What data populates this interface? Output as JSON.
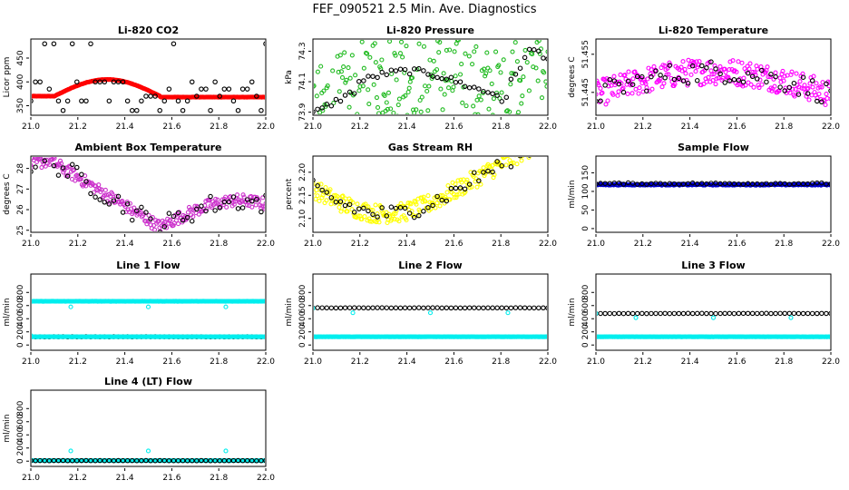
{
  "figure": {
    "title": "FEF_090521  2.5 Min. Ave. Diagnostics"
  },
  "chart_data": [
    {
      "type": "scatter",
      "title": "Li-820 CO2",
      "ylabel": "Licor ppm",
      "xlim": [
        21.0,
        22.0
      ],
      "ylim": [
        330,
        490
      ],
      "xticks": [
        "21.0",
        "21.2",
        "21.4",
        "21.6",
        "21.8",
        "22.0"
      ],
      "yticks": [
        "350",
        "400",
        "450"
      ],
      "series": [
        {
          "color": "#ff0000",
          "style": "dense",
          "gen": {
            "kind": "co2"
          }
        },
        {
          "color": "#000000",
          "style": "sparse",
          "gen": {
            "kind": "co2scatter"
          }
        }
      ]
    },
    {
      "type": "scatter",
      "title": "Li-820 Pressure",
      "ylabel": "kPa",
      "xlim": [
        21.0,
        22.0
      ],
      "ylim": [
        73.88,
        74.38
      ],
      "xticks": [
        "21.0",
        "21.2",
        "21.4",
        "21.6",
        "21.8",
        "22.0"
      ],
      "yticks": [
        "73.9",
        "74.1",
        "74.3"
      ],
      "series": [
        {
          "color": "#22bb22",
          "style": "dense",
          "gen": {
            "kind": "pressure"
          }
        },
        {
          "color": "#000000",
          "style": "sparse",
          "gen": {
            "kind": "pressure",
            "noise": 0.02
          }
        }
      ]
    },
    {
      "type": "scatter",
      "title": "Li-820 Temperature",
      "ylabel": "degrees C",
      "xlim": [
        21.0,
        22.0
      ],
      "ylim": [
        51.439,
        51.459
      ],
      "xticks": [
        "21.0",
        "21.2",
        "21.4",
        "21.6",
        "21.8",
        "22.0"
      ],
      "yticks": [
        "51.445",
        "51.455"
      ],
      "series": [
        {
          "color": "#ff00ff",
          "style": "medium",
          "gen": {
            "kind": "ltemp",
            "noise": 0.0035
          }
        },
        {
          "color": "#000000",
          "style": "sparse",
          "gen": {
            "kind": "ltemp",
            "noise": 0.003
          }
        }
      ]
    },
    {
      "type": "scatter",
      "title": "Ambient Box Temperature",
      "ylabel": "degrees C",
      "xlim": [
        21.0,
        22.0
      ],
      "ylim": [
        24.9,
        28.6
      ],
      "xticks": [
        "21.0",
        "21.2",
        "21.4",
        "21.6",
        "21.8",
        "22.0"
      ],
      "yticks": [
        "25",
        "26",
        "27",
        "28"
      ],
      "series": [
        {
          "color": "#cc33cc",
          "style": "dense",
          "gen": {
            "kind": "ambient"
          }
        },
        {
          "color": "#000000",
          "style": "sparse",
          "gen": {
            "kind": "ambient"
          }
        }
      ]
    },
    {
      "type": "scatter",
      "title": "Gas Stream RH",
      "ylabel": "percent",
      "xlim": [
        21.0,
        22.0
      ],
      "ylim": [
        2.07,
        2.235
      ],
      "xticks": [
        "21.0",
        "21.2",
        "21.4",
        "21.6",
        "21.8",
        "22.0"
      ],
      "yticks": [
        "2.10",
        "2.15",
        "2.20"
      ],
      "series": [
        {
          "color": "#ffff00",
          "style": "medium",
          "gen": {
            "kind": "rh",
            "noise": 0.02
          }
        },
        {
          "color": "#000000",
          "style": "sparse",
          "gen": {
            "kind": "rh",
            "noise": 0.018
          }
        }
      ]
    },
    {
      "type": "scatter",
      "title": "Sample Flow",
      "ylabel": "ml/min",
      "xlim": [
        21.0,
        22.0
      ],
      "ylim": [
        -10,
        195
      ],
      "xticks": [
        "21.0",
        "21.2",
        "21.4",
        "21.6",
        "21.8",
        "22.0"
      ],
      "yticks": [
        "0",
        "50",
        "100",
        "150"
      ],
      "series": [
        {
          "color": "#0000cc",
          "style": "dense",
          "gen": {
            "kind": "flat",
            "level": 118
          }
        },
        {
          "color": "#000000",
          "style": "sparse",
          "gen": {
            "kind": "flat",
            "level": 121
          }
        }
      ]
    },
    {
      "type": "scatter",
      "title": "Line 1 Flow",
      "ylabel": "ml/min",
      "xlim": [
        21.0,
        22.0
      ],
      "ylim": [
        -80,
        1080
      ],
      "xticks": [
        "21.0",
        "21.2",
        "21.4",
        "21.6",
        "21.8",
        "22.0"
      ],
      "yticks": [
        "0",
        "200",
        "400",
        "600",
        "800"
      ],
      "series": [
        {
          "color": "#00eeee",
          "style": "dense",
          "gen": {
            "kind": "flat",
            "level": 665
          }
        },
        {
          "color": "#000000",
          "style": "sparse",
          "gen": {
            "kind": "flat",
            "level": 125
          }
        },
        {
          "color": "#00eeee",
          "style": "dense",
          "gen": {
            "kind": "flat",
            "level": 125
          }
        },
        {
          "color": "#00eeee",
          "style": "points",
          "points": [
            [
              21.0,
              145
            ],
            [
              21.17,
              580
            ],
            [
              21.5,
              580
            ],
            [
              21.83,
              580
            ]
          ]
        }
      ]
    },
    {
      "type": "scatter",
      "title": "Line 2 Flow",
      "ylabel": "ml/min",
      "xlim": [
        21.0,
        22.0
      ],
      "ylim": [
        -80,
        1080
      ],
      "xticks": [
        "21.0",
        "21.2",
        "21.4",
        "21.6",
        "21.8",
        "22.0"
      ],
      "yticks": [
        "0",
        "200",
        "400",
        "600",
        "800"
      ],
      "series": [
        {
          "color": "#00eeee",
          "style": "dense",
          "gen": {
            "kind": "flat",
            "level": 125
          }
        },
        {
          "color": "#000000",
          "style": "sparse",
          "gen": {
            "kind": "flat",
            "level": 565
          }
        },
        {
          "color": "#00eeee",
          "style": "points",
          "points": [
            [
              21.0,
              560
            ],
            [
              21.17,
              490
            ],
            [
              21.5,
              490
            ],
            [
              21.83,
              490
            ]
          ]
        }
      ]
    },
    {
      "type": "scatter",
      "title": "Line 3 Flow",
      "ylabel": "ml/min",
      "xlim": [
        21.0,
        22.0
      ],
      "ylim": [
        -80,
        1080
      ],
      "xticks": [
        "21.0",
        "21.2",
        "21.4",
        "21.6",
        "21.8",
        "22.0"
      ],
      "yticks": [
        "0",
        "200",
        "400",
        "600",
        "800"
      ],
      "series": [
        {
          "color": "#00eeee",
          "style": "dense",
          "gen": {
            "kind": "flat",
            "level": 125
          }
        },
        {
          "color": "#000000",
          "style": "sparse",
          "gen": {
            "kind": "flat",
            "level": 480
          }
        },
        {
          "color": "#00eeee",
          "style": "points",
          "points": [
            [
              21.0,
              480
            ],
            [
              21.17,
              415
            ],
            [
              21.5,
              415
            ],
            [
              21.83,
              415
            ]
          ]
        }
      ]
    },
    {
      "type": "scatter",
      "title": "Line 4 (LT) Flow",
      "ylabel": "ml/min",
      "xlim": [
        21.0,
        22.0
      ],
      "ylim": [
        -80,
        1080
      ],
      "xticks": [
        "21.0",
        "21.2",
        "21.4",
        "21.6",
        "21.8",
        "22.0"
      ],
      "yticks": [
        "0",
        "200",
        "400",
        "600",
        "800"
      ],
      "series": [
        {
          "color": "#00eeee",
          "style": "dense",
          "gen": {
            "kind": "flat",
            "level": 8
          }
        },
        {
          "color": "#000000",
          "style": "sparse",
          "gen": {
            "kind": "flat",
            "level": 8
          }
        },
        {
          "color": "#00eeee",
          "style": "points",
          "points": [
            [
              21.17,
              155
            ],
            [
              21.5,
              155
            ],
            [
              21.83,
              155
            ]
          ]
        }
      ]
    }
  ]
}
